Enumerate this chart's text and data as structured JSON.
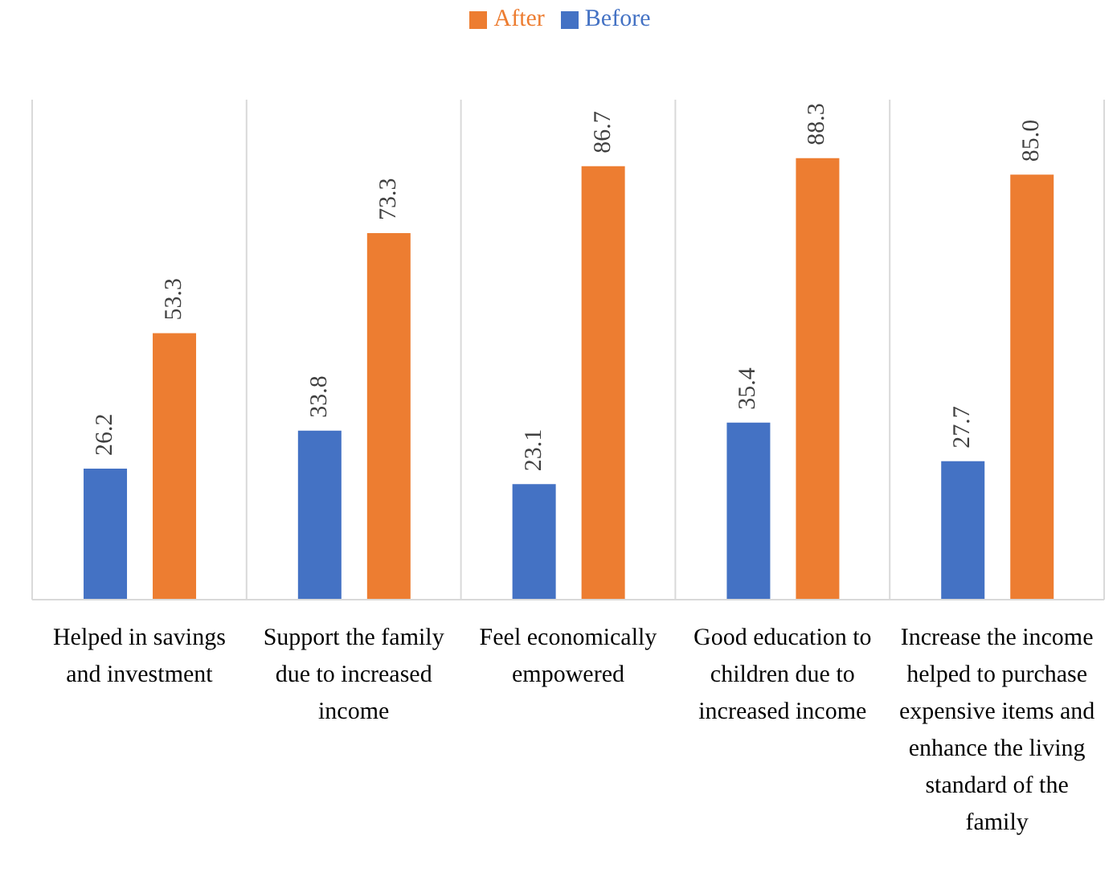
{
  "chart_data": {
    "type": "bar",
    "categories": [
      "Helped in savings and investment",
      "Support the family due to increased income",
      "Feel economically empowered",
      "Good education to children due to increased income",
      "Increase the income helped to purchase expensive items and enhance the living standard of the family"
    ],
    "series": [
      {
        "name": "Before",
        "color": "#4472c4",
        "values": [
          26.2,
          33.8,
          23.1,
          35.4,
          27.7
        ],
        "value_labels": [
          "26.2",
          "33.8",
          "23.1",
          "35.4",
          "27.7"
        ]
      },
      {
        "name": "After",
        "color": "#ed7d31",
        "values": [
          53.3,
          73.3,
          86.7,
          88.3,
          85.0
        ],
        "value_labels": [
          "53.3",
          "73.3",
          "86.7",
          "88.3",
          "85.0"
        ]
      }
    ],
    "legend": "top",
    "grid": "x",
    "tick_labels": "x"
  }
}
